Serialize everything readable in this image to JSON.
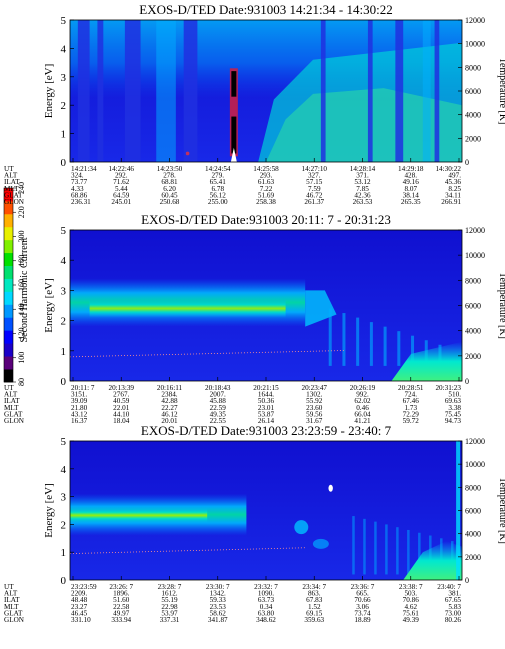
{
  "colors": {
    "colorbar": [
      "#000000",
      "#5a007a",
      "#1b00c8",
      "#0000ff",
      "#0050ff",
      "#0098ff",
      "#00d8ff",
      "#00e8c0",
      "#00e070",
      "#00e000",
      "#80f000",
      "#e8f000",
      "#ffb000",
      "#ff5000",
      "#ff0000"
    ],
    "background_field": "#1010d8"
  },
  "colorbar": {
    "label": "Second Harmonic Current",
    "ticks": [
      "80",
      "100",
      "120",
      "140",
      "160",
      "180",
      "200",
      "220",
      "240"
    ]
  },
  "chart_data": [
    {
      "type": "heatmap",
      "title": "EXOS-D/TED   Date:931003   14:21:34 - 14:30:22",
      "ylabel": "Energy [eV]",
      "y2label": "Temperature [K]",
      "ylim": [
        0,
        5
      ],
      "y2lim": [
        0,
        12000
      ],
      "yticks": [
        "0",
        "1",
        "2",
        "3",
        "4",
        "5"
      ],
      "y2ticks": [
        "0",
        "2000",
        "4000",
        "6000",
        "8000",
        "10000",
        "12000"
      ],
      "row_labels": [
        "UT",
        "ALT",
        "ILAT",
        "MLT",
        "GLAT",
        "GLON"
      ],
      "columns": [
        [
          "14:21:34",
          "324.",
          "73.77",
          "4.33",
          "68.86",
          "236.31"
        ],
        [
          "14:22:46",
          "292.",
          "71.62",
          "5.44",
          "64.59",
          "245.01"
        ],
        [
          "14:23:50",
          "278.",
          "68.81",
          "6.20",
          "60.45",
          "250.68"
        ],
        [
          "14:24:54",
          "279.",
          "65.41",
          "6.78",
          "56.12",
          "255.00"
        ],
        [
          "14:25:58",
          "293.",
          "61.63",
          "7.22",
          "51.69",
          "258.38"
        ],
        [
          "14:27:10",
          "327.",
          "57.15",
          "7.59",
          "46.72",
          "261.37"
        ],
        [
          "14:28:14",
          "371.",
          "53.12",
          "7.85",
          "42.36",
          "263.53"
        ],
        [
          "14:29:18",
          "428.",
          "49.16",
          "8.07",
          "38.14",
          "265.35"
        ],
        [
          "14:30:22",
          "497.",
          "45.36",
          "8.25",
          "34.11",
          "266.91"
        ]
      ]
    },
    {
      "type": "heatmap",
      "title": "EXOS-D/TED   Date:931003   20:11: 7 - 20:31:23",
      "ylabel": "Energy [eV]",
      "y2label": "Temperature [K]",
      "ylim": [
        0,
        5
      ],
      "y2lim": [
        0,
        12000
      ],
      "yticks": [
        "0",
        "1",
        "2",
        "3",
        "4",
        "5"
      ],
      "y2ticks": [
        "0",
        "2000",
        "4000",
        "6000",
        "8000",
        "10000",
        "12000"
      ],
      "row_labels": [
        "UT",
        "ALT",
        "ILAT",
        "MLT",
        "GLAT",
        "GLON"
      ],
      "columns": [
        [
          "20:11: 7",
          "3151.",
          "39.09",
          "21.80",
          "43.12",
          "16.37"
        ],
        [
          "20:13:39",
          "2767.",
          "40.59",
          "22.01",
          "44.10",
          "18.04"
        ],
        [
          "20:16:11",
          "2384.",
          "42.88",
          "22.27",
          "46.12",
          "20.01"
        ],
        [
          "20:18:43",
          "2007.",
          "45.88",
          "22.59",
          "49.35",
          "22.55"
        ],
        [
          "20:21:15",
          "1644.",
          "50.36",
          "23.01",
          "53.87",
          "26.14"
        ],
        [
          "20:23:47",
          "1302.",
          "55.92",
          "23.60",
          "59.56",
          "31.67"
        ],
        [
          "20:26:19",
          "992.",
          "62.02",
          "0.46",
          "66.04",
          "41.21"
        ],
        [
          "20:28:51",
          "724.",
          "67.46",
          "1.73",
          "72.29",
          "59.72"
        ],
        [
          "20:31:23",
          "510.",
          "69.63",
          "3.38",
          "75.45",
          "94.73"
        ]
      ]
    },
    {
      "type": "heatmap",
      "title": "EXOS-D/TED   Date:931003   23:23:59 - 23:40: 7",
      "ylabel": "Energy [eV]",
      "y2label": "Temperature [K]",
      "ylim": [
        0,
        5
      ],
      "y2lim": [
        0,
        12000
      ],
      "yticks": [
        "0",
        "1",
        "2",
        "3",
        "4",
        "5"
      ],
      "y2ticks": [
        "0",
        "2000",
        "4000",
        "6000",
        "8000",
        "10000",
        "12000"
      ],
      "row_labels": [
        "UT",
        "ALT",
        "ILAT",
        "MLT",
        "GLAT",
        "GLON"
      ],
      "columns": [
        [
          "23:23:59",
          "2209.",
          "48.48",
          "23.27",
          "46.45",
          "331.10"
        ],
        [
          "23:26: 7",
          "1896.",
          "51.60",
          "22.58",
          "49.97",
          "333.94"
        ],
        [
          "23:28: 7",
          "1612.",
          "55.19",
          "22.98",
          "53.97",
          "337.31"
        ],
        [
          "23:30: 7",
          "1342.",
          "59.33",
          "23.53",
          "58.62",
          "341.87"
        ],
        [
          "23:32: 7",
          "1090.",
          "63.73",
          "0.34",
          "63.80",
          "348.62"
        ],
        [
          "23:34: 7",
          "863.",
          "67.83",
          "1.52",
          "69.15",
          "359.63"
        ],
        [
          "23:36: 7",
          "665.",
          "70.66",
          "3.06",
          "73.74",
          "18.89"
        ],
        [
          "23:38: 7",
          "503.",
          "70.86",
          "4.62",
          "75.61",
          "49.39"
        ],
        [
          "23:40: 7",
          "381.",
          "67.65",
          "5.83",
          "73.00",
          "80.26"
        ]
      ]
    }
  ]
}
